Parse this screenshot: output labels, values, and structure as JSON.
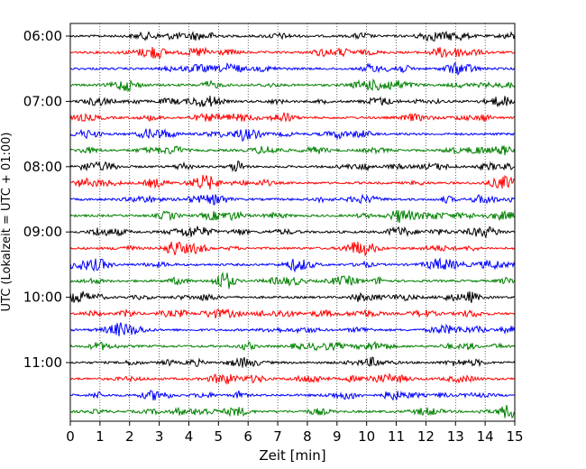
{
  "chart_data": {
    "type": "line",
    "title": "",
    "xlabel": "Zeit  [min]",
    "ylabel": "UTC (Lokalzeit = UTC + 01:00)",
    "xlim": [
      0,
      15
    ],
    "x_ticks": [
      0,
      1,
      2,
      3,
      4,
      5,
      6,
      7,
      8,
      9,
      10,
      11,
      12,
      13,
      14,
      15
    ],
    "y_tick_labels": [
      "06:00",
      "07:00",
      "08:00",
      "09:00",
      "10:00",
      "11:00"
    ],
    "trace_interval_min": 15,
    "start_time": "06:00",
    "trace_count": 24,
    "trace_colors": [
      "#000000",
      "#ff0000",
      "#0000ff",
      "#008000"
    ],
    "grid": "vertical dotted",
    "legend": "none"
  }
}
